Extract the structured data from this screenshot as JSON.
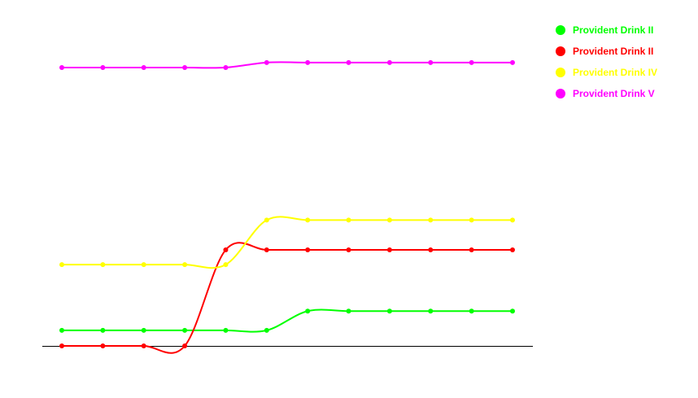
{
  "chart_data": {
    "type": "line",
    "title": "",
    "xlabel": "",
    "ylabel": "",
    "x": [
      1,
      2,
      3,
      4,
      5,
      6,
      7,
      8,
      9,
      10,
      11,
      12
    ],
    "ylim": [
      0,
      100
    ],
    "grid": false,
    "legend_position": "top-right",
    "smooth": true,
    "series": [
      {
        "name": "Provident Drink II",
        "color": "#00ff00",
        "values": [
          5.6,
          5.6,
          5.6,
          5.6,
          5.6,
          5.6,
          12.5,
          12.5,
          12.5,
          12.5,
          12.5,
          12.5
        ]
      },
      {
        "name": "Provident Drink II",
        "color": "#ff0000",
        "values": [
          0,
          0,
          0,
          0,
          34.5,
          34.5,
          34.5,
          34.5,
          34.5,
          34.5,
          34.5,
          34.5
        ]
      },
      {
        "name": "Provident Drink IV",
        "color": "#ffff00",
        "values": [
          29.2,
          29.2,
          29.2,
          29.2,
          29.2,
          45.2,
          45.2,
          45.2,
          45.2,
          45.2,
          45.2,
          45.2
        ]
      },
      {
        "name": "Provident Drink V",
        "color": "#ff00ff",
        "values": [
          100,
          100,
          100,
          100,
          100,
          101.8,
          101.8,
          101.8,
          101.8,
          101.8,
          101.8,
          101.8
        ]
      }
    ]
  }
}
